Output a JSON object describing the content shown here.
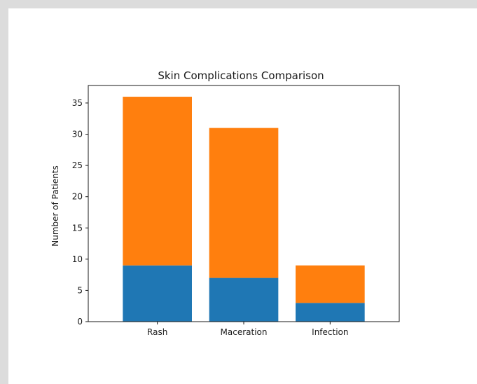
{
  "chart_data": {
    "type": "bar",
    "stacked": true,
    "title": "Skin Complications Comparison",
    "xlabel": "",
    "ylabel": "Number of Patients",
    "categories": [
      "Rash",
      "Maceration",
      "Infection"
    ],
    "series": [
      {
        "values": [
          9,
          7,
          3
        ],
        "color": "#1f77b4"
      },
      {
        "values": [
          27,
          24,
          6
        ],
        "color": "#ff7f0e"
      }
    ],
    "ylim": [
      0,
      37.8
    ],
    "yticks": [
      0,
      5,
      10,
      15,
      20,
      25,
      30,
      35
    ],
    "grid": false,
    "legend": "none"
  }
}
